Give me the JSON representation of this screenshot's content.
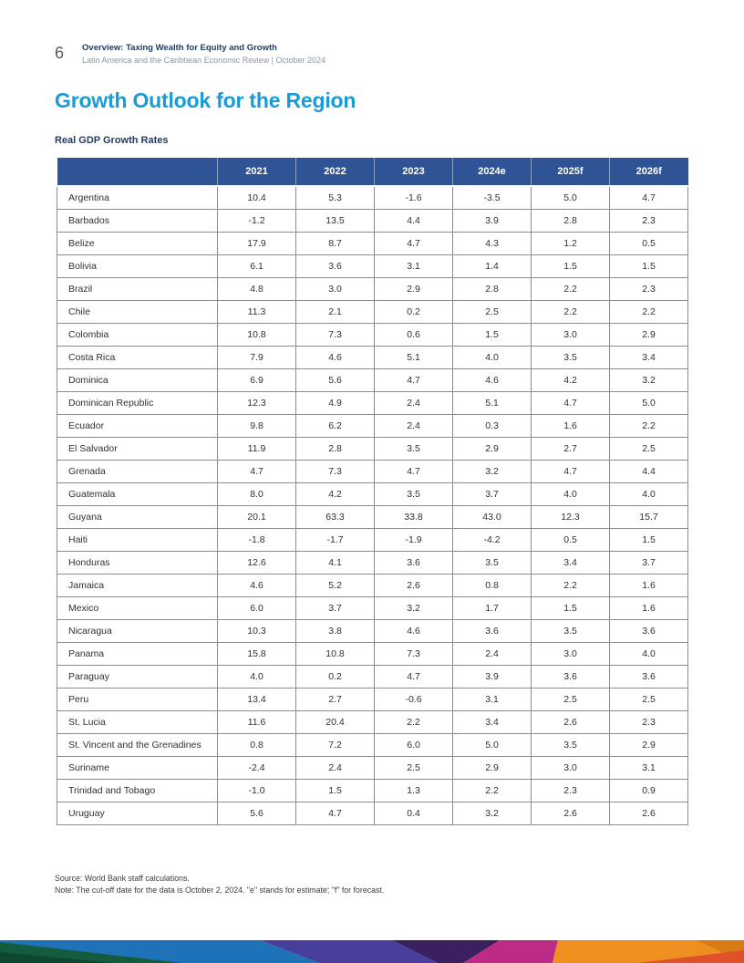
{
  "page": {
    "number": "6",
    "header_title": "Overview: Taxing Wealth for Equity and Growth",
    "header_subtitle": "Latin America and the Caribbean Economic Review | October 2024"
  },
  "section": {
    "title": "Growth Outlook for the Region"
  },
  "table": {
    "caption": "Real GDP Growth Rates",
    "columns": [
      "2021",
      "2022",
      "2023",
      "2024e",
      "2025f",
      "2026f"
    ],
    "rows": [
      {
        "country": "Argentina",
        "values": [
          "10.4",
          "5.3",
          "-1.6",
          "-3.5",
          "5.0",
          "4.7"
        ]
      },
      {
        "country": "Barbados",
        "values": [
          "-1.2",
          "13.5",
          "4.4",
          "3.9",
          "2.8",
          "2.3"
        ]
      },
      {
        "country": "Belize",
        "values": [
          "17.9",
          "8.7",
          "4.7",
          "4.3",
          "1.2",
          "0.5"
        ]
      },
      {
        "country": "Bolivia",
        "values": [
          "6.1",
          "3.6",
          "3.1",
          "1.4",
          "1.5",
          "1.5"
        ]
      },
      {
        "country": "Brazil",
        "values": [
          "4.8",
          "3.0",
          "2.9",
          "2.8",
          "2.2",
          "2.3"
        ]
      },
      {
        "country": "Chile",
        "values": [
          "11.3",
          "2.1",
          "0.2",
          "2.5",
          "2.2",
          "2.2"
        ]
      },
      {
        "country": "Colombia",
        "values": [
          "10.8",
          "7.3",
          "0.6",
          "1.5",
          "3.0",
          "2.9"
        ]
      },
      {
        "country": "Costa Rica",
        "values": [
          "7.9",
          "4.6",
          "5.1",
          "4.0",
          "3.5",
          "3.4"
        ]
      },
      {
        "country": "Dominica",
        "values": [
          "6.9",
          "5.6",
          "4.7",
          "4.6",
          "4.2",
          "3.2"
        ]
      },
      {
        "country": "Dominican Republic",
        "values": [
          "12.3",
          "4.9",
          "2.4",
          "5.1",
          "4.7",
          "5.0"
        ]
      },
      {
        "country": "Ecuador",
        "values": [
          "9.8",
          "6.2",
          "2.4",
          "0.3",
          "1.6",
          "2.2"
        ]
      },
      {
        "country": "El Salvador",
        "values": [
          "11.9",
          "2.8",
          "3.5",
          "2.9",
          "2.7",
          "2.5"
        ]
      },
      {
        "country": "Grenada",
        "values": [
          "4.7",
          "7.3",
          "4.7",
          "3.2",
          "4.7",
          "4.4"
        ]
      },
      {
        "country": "Guatemala",
        "values": [
          "8.0",
          "4.2",
          "3.5",
          "3.7",
          "4.0",
          "4.0"
        ]
      },
      {
        "country": "Guyana",
        "values": [
          "20.1",
          "63.3",
          "33.8",
          "43.0",
          "12.3",
          "15.7"
        ]
      },
      {
        "country": "Haiti",
        "values": [
          "-1.8",
          "-1.7",
          "-1.9",
          "-4.2",
          "0.5",
          "1.5"
        ]
      },
      {
        "country": "Honduras",
        "values": [
          "12.6",
          "4.1",
          "3.6",
          "3.5",
          "3.4",
          "3.7"
        ]
      },
      {
        "country": "Jamaica",
        "values": [
          "4.6",
          "5.2",
          "2.6",
          "0.8",
          "2.2",
          "1.6"
        ]
      },
      {
        "country": "Mexico",
        "values": [
          "6.0",
          "3.7",
          "3.2",
          "1.7",
          "1.5",
          "1.6"
        ]
      },
      {
        "country": "Nicaragua",
        "values": [
          "10.3",
          "3.8",
          "4.6",
          "3.6",
          "3.5",
          "3.6"
        ]
      },
      {
        "country": "Panama",
        "values": [
          "15.8",
          "10.8",
          "7.3",
          "2.4",
          "3.0",
          "4.0"
        ]
      },
      {
        "country": "Paraguay",
        "values": [
          "4.0",
          "0.2",
          "4.7",
          "3.9",
          "3.6",
          "3.6"
        ]
      },
      {
        "country": "Peru",
        "values": [
          "13.4",
          "2.7",
          "-0.6",
          "3.1",
          "2.5",
          "2.5"
        ]
      },
      {
        "country": "St. Lucia",
        "values": [
          "11.6",
          "20.4",
          "2.2",
          "3.4",
          "2.6",
          "2.3"
        ]
      },
      {
        "country": "St. Vincent and the Grenadines",
        "values": [
          "0.8",
          "7.2",
          "6.0",
          "5.0",
          "3.5",
          "2.9"
        ]
      },
      {
        "country": "Suriname",
        "values": [
          "-2.4",
          "2.4",
          "2.5",
          "2.9",
          "3.0",
          "3.1"
        ]
      },
      {
        "country": "Trinidad and Tobago",
        "values": [
          "-1.0",
          "1.5",
          "1.3",
          "2.2",
          "2.3",
          "0.9"
        ]
      },
      {
        "country": "Uruguay",
        "values": [
          "5.6",
          "4.7",
          "0.4",
          "3.2",
          "2.6",
          "2.6"
        ]
      }
    ]
  },
  "notes": {
    "source": "Source: World Bank staff calculations.",
    "note": "Note: The cut-off date for the data is October 2, 2024. \"e\" stands for estimate; \"f\" for forecast."
  },
  "colors": {
    "accent_cyan": "#189bd6",
    "header_blue": "#2f5496",
    "navy": "#243a5e",
    "border_gray": "#8c8c8c"
  },
  "band": {
    "colors": {
      "blue": "#1e72b7",
      "green": "#155c3e",
      "green_dark": "#0d4730",
      "indigo": "#473f9b",
      "purple": "#3b2060",
      "magenta": "#bd2b86",
      "orange": "#ef8f20",
      "orange_dark": "#d87b15",
      "red_orange": "#e0512b"
    }
  }
}
